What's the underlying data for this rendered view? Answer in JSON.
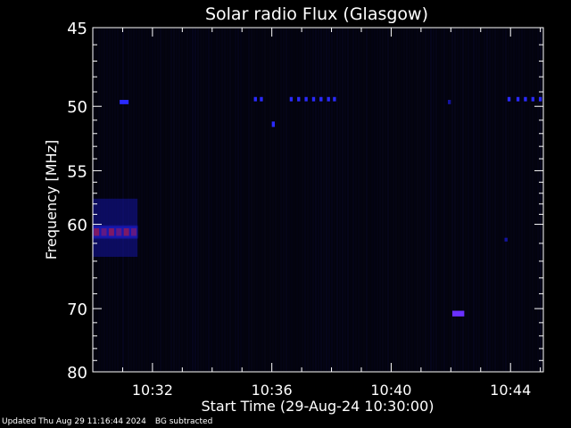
{
  "chart_data": {
    "type": "heatmap",
    "title": "Solar radio Flux (Glasgow)",
    "xlabel": "Start Time (29-Aug-24 10:30:00)",
    "ylabel": "Frequency [MHz]",
    "x_unit": "minutes after 10:30:00",
    "xlim": [
      0,
      15.1
    ],
    "ylim": [
      45,
      80
    ],
    "y_scale": "reciprocal",
    "y_inverted": true,
    "x_ticks": [
      {
        "value": 2,
        "label": "10:32"
      },
      {
        "value": 6,
        "label": "10:36"
      },
      {
        "value": 10,
        "label": "10:40"
      },
      {
        "value": 14,
        "label": "10:44"
      }
    ],
    "y_ticks": [
      {
        "value": 45,
        "label": "45"
      },
      {
        "value": 50,
        "label": "50"
      },
      {
        "value": 55,
        "label": "55"
      },
      {
        "value": 60,
        "label": "60"
      },
      {
        "value": 70,
        "label": "70"
      },
      {
        "value": 80,
        "label": "80"
      }
    ],
    "colormap": {
      "low": "#000010",
      "mid": "#2020ff",
      "high": "#ff2020"
    },
    "features": [
      {
        "x_start": 0.0,
        "x_end": 1.5,
        "freq": 60.8,
        "freq_width": 0.6,
        "intensity": 1.0
      },
      {
        "x_start": 0.0,
        "x_end": 1.5,
        "freq_low": 57.5,
        "freq_high": 63.5,
        "intensity": 0.25
      },
      {
        "x_start": 0.9,
        "x_end": 1.2,
        "freq": 49.7,
        "freq_width": 0.3,
        "intensity": 0.5
      },
      {
        "x_start": 5.4,
        "x_end": 5.5,
        "freq": 49.5,
        "freq_width": 0.3,
        "intensity": 0.55
      },
      {
        "x_start": 5.6,
        "x_end": 5.7,
        "freq": 49.5,
        "freq_width": 0.3,
        "intensity": 0.55
      },
      {
        "x_start": 6.0,
        "x_end": 6.1,
        "freq": 51.3,
        "freq_width": 0.4,
        "intensity": 0.45
      },
      {
        "x_start": 6.6,
        "x_end": 6.7,
        "freq": 49.5,
        "freq_width": 0.3,
        "intensity": 0.6
      },
      {
        "x_start": 6.85,
        "x_end": 6.95,
        "freq": 49.5,
        "freq_width": 0.3,
        "intensity": 0.6
      },
      {
        "x_start": 7.1,
        "x_end": 7.2,
        "freq": 49.5,
        "freq_width": 0.3,
        "intensity": 0.6
      },
      {
        "x_start": 7.35,
        "x_end": 7.45,
        "freq": 49.5,
        "freq_width": 0.3,
        "intensity": 0.6
      },
      {
        "x_start": 7.6,
        "x_end": 7.7,
        "freq": 49.5,
        "freq_width": 0.3,
        "intensity": 0.6
      },
      {
        "x_start": 7.85,
        "x_end": 7.95,
        "freq": 49.5,
        "freq_width": 0.3,
        "intensity": 0.6
      },
      {
        "x_start": 8.05,
        "x_end": 8.15,
        "freq": 49.5,
        "freq_width": 0.3,
        "intensity": 0.6
      },
      {
        "x_start": 12.05,
        "x_end": 12.45,
        "freq": 70.7,
        "freq_width": 0.8,
        "intensity": 0.75
      },
      {
        "x_start": 11.9,
        "x_end": 12.0,
        "freq": 49.7,
        "freq_width": 0.3,
        "intensity": 0.4
      },
      {
        "x_start": 13.9,
        "x_end": 14.0,
        "freq": 49.5,
        "freq_width": 0.3,
        "intensity": 0.6
      },
      {
        "x_start": 14.2,
        "x_end": 14.3,
        "freq": 49.5,
        "freq_width": 0.3,
        "intensity": 0.6
      },
      {
        "x_start": 14.45,
        "x_end": 14.55,
        "freq": 49.5,
        "freq_width": 0.3,
        "intensity": 0.6
      },
      {
        "x_start": 14.7,
        "x_end": 14.8,
        "freq": 49.5,
        "freq_width": 0.3,
        "intensity": 0.6
      },
      {
        "x_start": 14.95,
        "x_end": 15.05,
        "freq": 49.5,
        "freq_width": 0.3,
        "intensity": 0.6
      },
      {
        "x_start": 13.8,
        "x_end": 13.9,
        "freq": 61.6,
        "freq_width": 0.4,
        "intensity": 0.35
      }
    ]
  },
  "footer": {
    "updated": "Updated Thu Aug 29 11:16:44 2024",
    "bg_note": "BG subtracted"
  }
}
